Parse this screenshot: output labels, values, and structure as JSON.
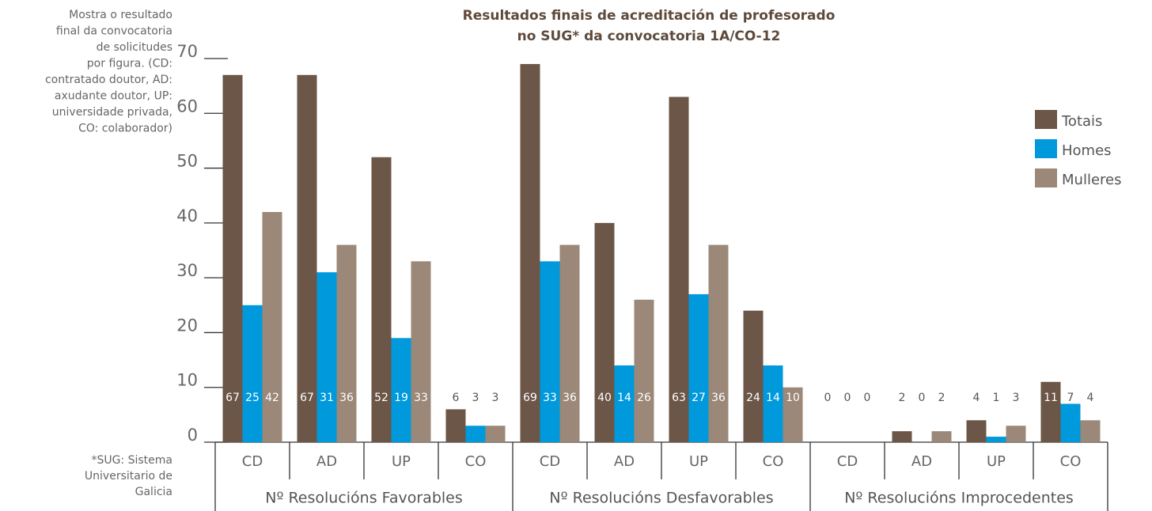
{
  "chart_data": {
    "type": "bar",
    "title": [
      "Resultados finais de acreditación de profesorado",
      "no SUG* da convocatoria 1A/CO-12"
    ],
    "annotation": [
      "Mostra o resultado",
      "final da convocatoria",
      "de solicitudes",
      "por figura.  (CD:",
      "contratado doutor, AD:",
      "axudante doutor, UP:",
      "universidade privada,",
      "CO: colaborador)"
    ],
    "footnote": [
      "*SUG: Sistema",
      "Universitario de",
      "Galicia"
    ],
    "categories": [
      "CD",
      "AD",
      "UP",
      "CO",
      "CD",
      "AD",
      "UP",
      "CO",
      "CD",
      "AD",
      "UP",
      "CO"
    ],
    "groups": [
      "Nº Resolucións Favorables",
      "Nº Resolucións Desfavorables",
      "Nº Resolucións Improcedentes"
    ],
    "series": [
      {
        "name": "Totais",
        "color": "#6b5647",
        "values": [
          67,
          67,
          52,
          6,
          69,
          40,
          63,
          24,
          0,
          2,
          4,
          11
        ]
      },
      {
        "name": "Homes",
        "color": "#0099dc",
        "values": [
          25,
          31,
          19,
          3,
          33,
          14,
          27,
          14,
          0,
          0,
          1,
          7
        ]
      },
      {
        "name": "Mulleres",
        "color": "#9b8878",
        "values": [
          42,
          36,
          33,
          3,
          36,
          26,
          36,
          10,
          0,
          2,
          3,
          4
        ]
      }
    ],
    "ylim": [
      0,
      70
    ],
    "yticks": [
      0,
      10,
      20,
      30,
      40,
      50,
      60,
      70
    ],
    "legend": "upper right"
  }
}
